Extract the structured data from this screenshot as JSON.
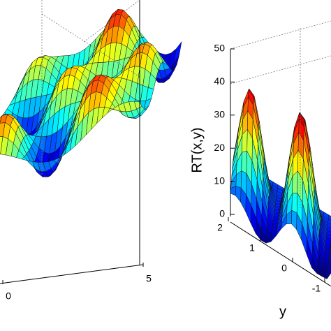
{
  "chart_data": [
    {
      "type": "surface",
      "xticks": [
        0,
        5
      ]
    },
    {
      "type": "surface",
      "zlabel": "RT(x,y)",
      "ylabel": "y",
      "zlim": [
        0,
        50
      ],
      "zticks": [
        0,
        10,
        20,
        30,
        40,
        50
      ],
      "yticks": [
        2,
        1,
        0,
        -1
      ]
    }
  ]
}
